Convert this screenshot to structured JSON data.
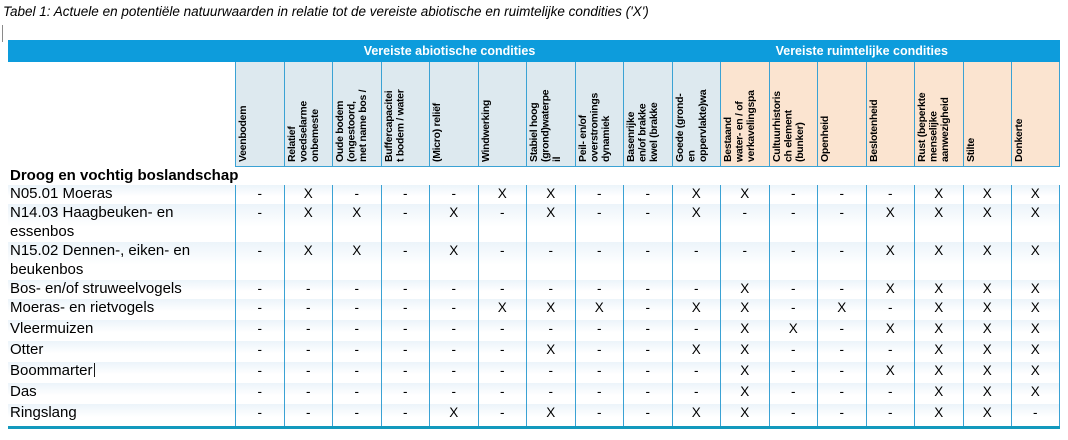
{
  "title": "Tabel 1: Actuele en potentiële natuurwaarden in relatie tot de vereiste abiotische en ruimtelijke condities ('X')",
  "colors": {
    "band_blue": "#0d9cdc",
    "abiotic_header_bg": "#dde9ef",
    "spatial_header_bg": "#fbe4d0",
    "grid_border": "#3aa2d4",
    "table_bottom_border": "#1399bd",
    "row_tint": "#ecf4fa"
  },
  "table": {
    "groups": [
      {
        "label": "Vereiste abiotische condities",
        "span": 10
      },
      {
        "label": "Vereiste ruimtelijke condities",
        "span": 7
      }
    ],
    "columns": [
      {
        "label": "Veenbodem",
        "group": "abiotisch"
      },
      {
        "label": "Relatief\nvoedselarme\nonbemeste",
        "group": "abiotisch"
      },
      {
        "label": "Oude bodem\n(ongestoord,\nmet name bos /",
        "group": "abiotisch"
      },
      {
        "label": "Buffercapacitei\nt bodem / water",
        "group": "abiotisch"
      },
      {
        "label": "(Micro) reliëf",
        "group": "abiotisch"
      },
      {
        "label": "Windwerking",
        "group": "abiotisch"
      },
      {
        "label": "Stabiel hoog\n(grond)waterpe\nil",
        "group": "abiotisch"
      },
      {
        "label": "Peil- en/of\noverstromings\ndynamiek",
        "group": "abiotisch"
      },
      {
        "label": "Basenrijke\nen/of brakke\nkwel (brakke",
        "group": "abiotisch"
      },
      {
        "label": "Goede (grond-\nen\noppervlakte)wa",
        "group": "abiotisch"
      },
      {
        "label": "Bestaand\nwater- en / of\nverkavelingspa",
        "group": "ruimtelijk"
      },
      {
        "label": "Cultuurhistoris\nch element\n(bunker)",
        "group": "ruimtelijk"
      },
      {
        "label": "Openheid",
        "group": "ruimtelijk"
      },
      {
        "label": "Beslotenheid",
        "group": "ruimtelijk"
      },
      {
        "label": "Rust (beperkte\nmenselijke\naanwezigheid",
        "group": "ruimtelijk"
      },
      {
        "label": "Stilte",
        "group": "ruimtelijk"
      },
      {
        "label": "Donkerte",
        "group": "ruimtelijk"
      }
    ],
    "section_header": "Droog en vochtig boslandschap",
    "mark": "X",
    "no_mark": "-",
    "rows": [
      {
        "label": "N05.01 Moeras",
        "cells": [
          "-",
          "X",
          "-",
          "-",
          "-",
          "X",
          "X",
          "-",
          "-",
          "X",
          "X",
          "-",
          "-",
          "-",
          "X",
          "X",
          "X"
        ]
      },
      {
        "label": "N14.03 Haagbeuken- en\nessenbos",
        "cells": [
          "-",
          "X",
          "X",
          "-",
          "X",
          "-",
          "X",
          "-",
          "-",
          "X",
          "-",
          "-",
          "-",
          "X",
          "X",
          "X",
          "X"
        ]
      },
      {
        "label": "N15.02 Dennen-, eiken- en\nbeukenbos",
        "cells": [
          "-",
          "X",
          "X",
          "-",
          "X",
          "-",
          "-",
          "-",
          "-",
          "-",
          "-",
          "-",
          "-",
          "X",
          "X",
          "X",
          "X"
        ]
      },
      {
        "label": "Bos- en/of struweelvogels",
        "cells": [
          "-",
          "-",
          "-",
          "-",
          "-",
          "-",
          "-",
          "-",
          "-",
          "-",
          "X",
          "-",
          "-",
          "X",
          "X",
          "X",
          "X"
        ]
      },
      {
        "label": "Moeras- en rietvogels",
        "cells": [
          "-",
          "-",
          "-",
          "-",
          "-",
          "X",
          "X",
          "X",
          "-",
          "X",
          "X",
          "-",
          "X",
          "-",
          "X",
          "X",
          "X"
        ]
      },
      {
        "label": "Vleermuizen",
        "cells": [
          "-",
          "-",
          "-",
          "-",
          "-",
          "-",
          "-",
          "-",
          "-",
          "-",
          "X",
          "X",
          "-",
          "X",
          "X",
          "X",
          "X"
        ]
      },
      {
        "label": "Otter",
        "cells": [
          "-",
          "-",
          "-",
          "-",
          "-",
          "-",
          "X",
          "-",
          "-",
          "X",
          "X",
          "-",
          "-",
          "-",
          "X",
          "X",
          "X"
        ]
      },
      {
        "label": "Boommarter",
        "cursor": true,
        "cells": [
          "-",
          "-",
          "-",
          "-",
          "-",
          "-",
          "-",
          "-",
          "-",
          "-",
          "X",
          "-",
          "-",
          "X",
          "X",
          "X",
          "X"
        ]
      },
      {
        "label": "Das",
        "cells": [
          "-",
          "-",
          "-",
          "-",
          "-",
          "-",
          "-",
          "-",
          "-",
          "-",
          "X",
          "-",
          "-",
          "-",
          "X",
          "X",
          "X"
        ]
      },
      {
        "label": "Ringslang",
        "cells": [
          "-",
          "-",
          "-",
          "-",
          "X",
          "-",
          "X",
          "-",
          "-",
          "X",
          "X",
          "-",
          "-",
          "-",
          "X",
          "X",
          "-"
        ]
      }
    ]
  }
}
